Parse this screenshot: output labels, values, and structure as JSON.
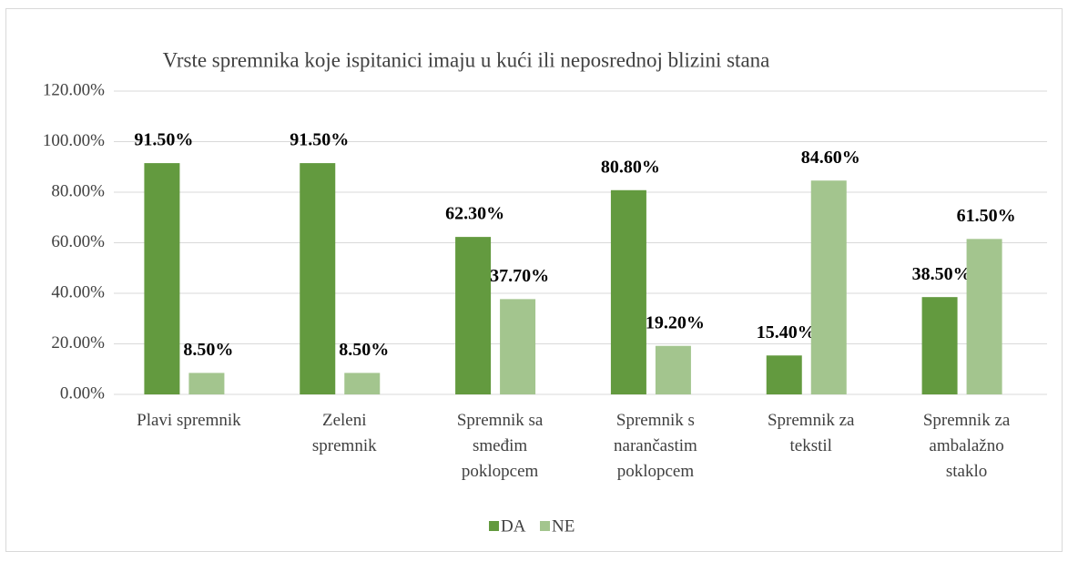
{
  "chart_data": {
    "type": "bar",
    "title": "Vrste spremnika koje ispitanici imaju u kući ili neposrednoj blizini stana",
    "categories": [
      "Plavi spremnik",
      "Zeleni spremnik",
      "Spremnik sa smeđim poklopcem",
      "Spremnik s narančastim poklopcem",
      "Spremnik za tekstil",
      "Spremnik za ambalažno staklo"
    ],
    "series": [
      {
        "name": "DA",
        "color": "#639a3f",
        "values": [
          91.5,
          91.5,
          62.3,
          80.8,
          15.4,
          38.5
        ],
        "value_labels": [
          "91.50%",
          "91.50%",
          "62.30%",
          "80.80%",
          "15.40%",
          "38.50%"
        ]
      },
      {
        "name": "NE",
        "color": "#a3c58e",
        "values": [
          8.5,
          8.5,
          37.7,
          19.2,
          84.6,
          61.5
        ],
        "value_labels": [
          "8.50%",
          "8.50%",
          "37.70%",
          "19.20%",
          "84.60%",
          "61.50%"
        ]
      }
    ],
    "ylim": [
      0,
      120
    ],
    "yticks": [
      {
        "value": 0,
        "label": "0.00%"
      },
      {
        "value": 20,
        "label": "20.00%"
      },
      {
        "value": 40,
        "label": "40.00%"
      },
      {
        "value": 60,
        "label": "60.00%"
      },
      {
        "value": 80,
        "label": "80.00%"
      },
      {
        "value": 100,
        "label": "100.00%"
      },
      {
        "value": 120,
        "label": "120.00%"
      }
    ],
    "grid": true,
    "legend": "bottom"
  }
}
